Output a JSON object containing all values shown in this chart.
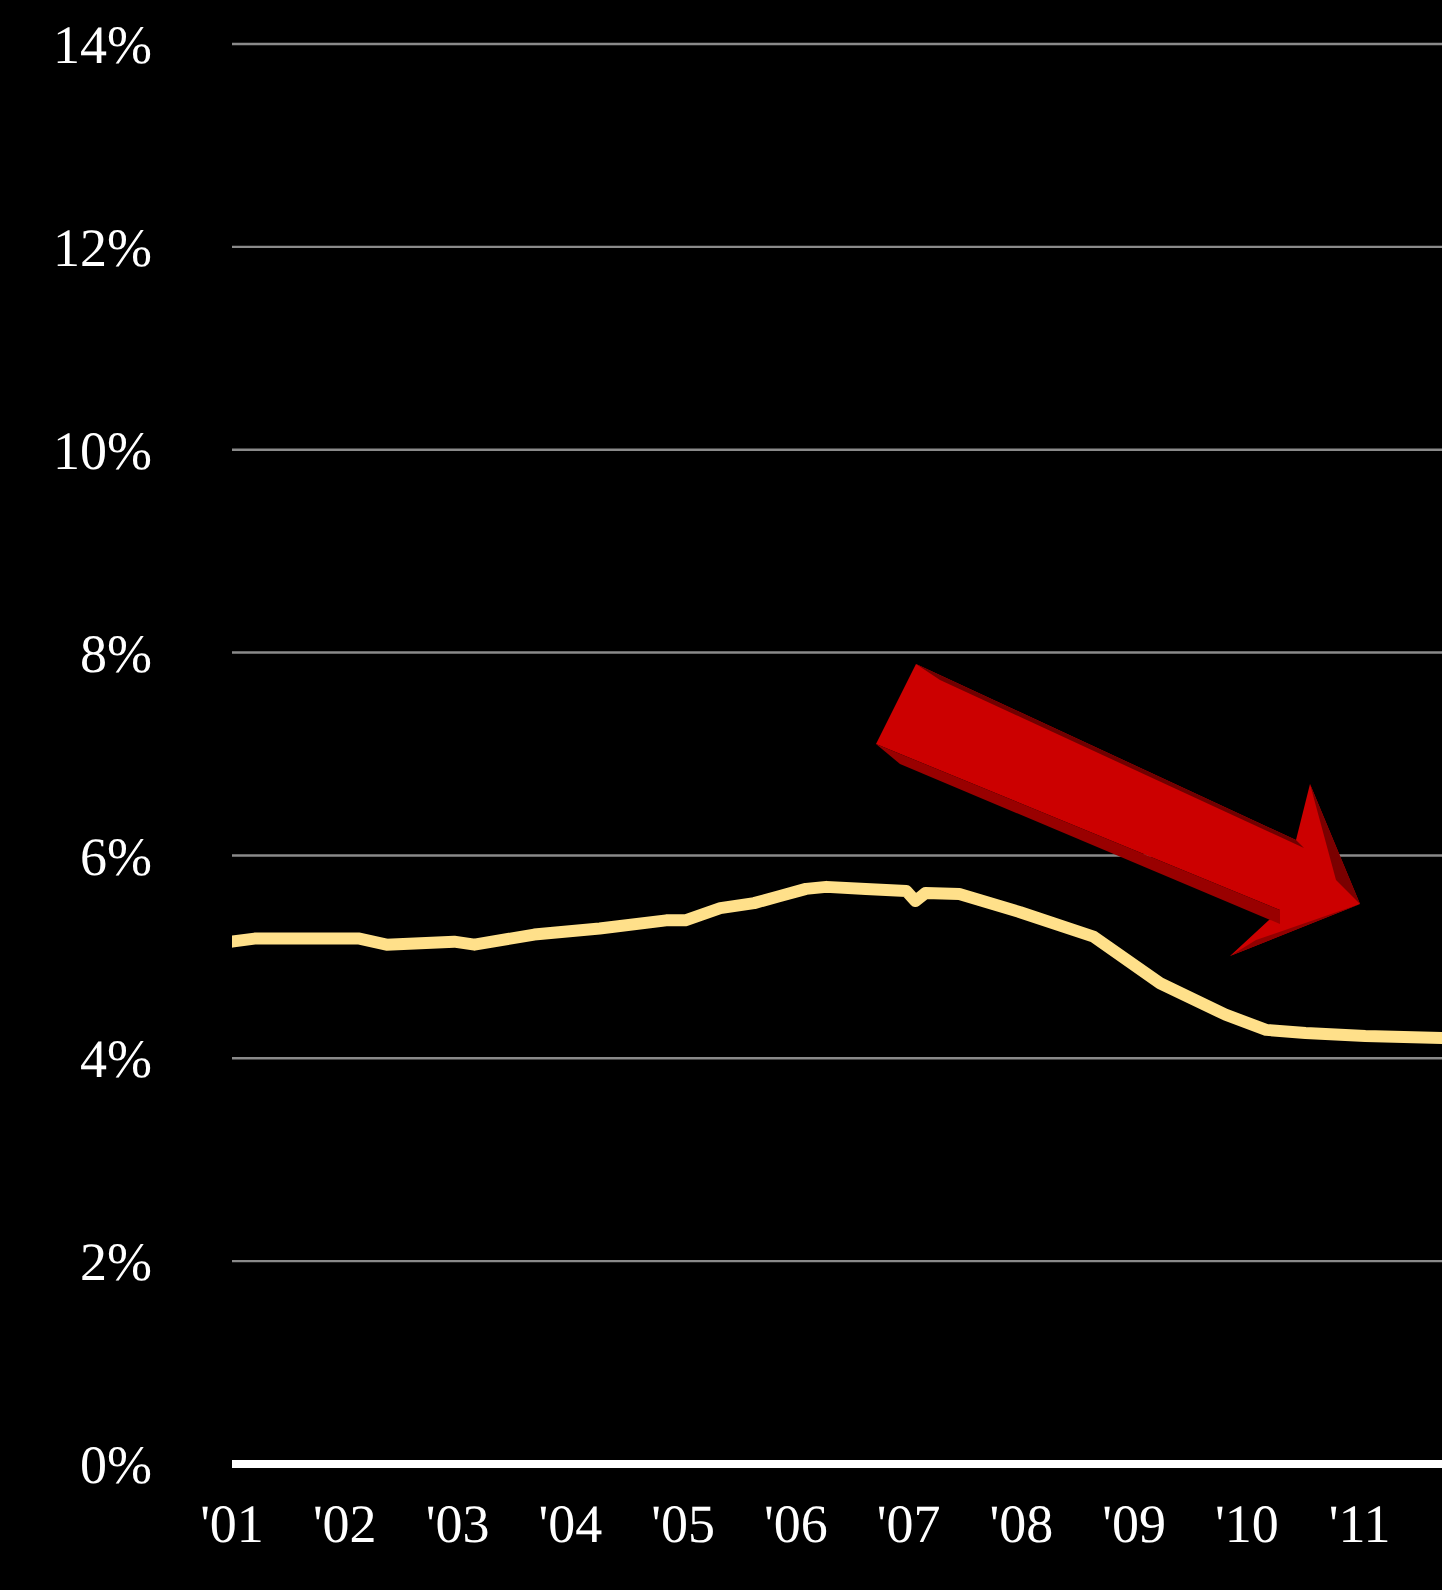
{
  "chart_data": {
    "type": "line",
    "x": [
      2001,
      2001.2,
      2002.13,
      2002.37,
      2002.97,
      2003.15,
      2003.68,
      2004.26,
      2004.85,
      2005.02,
      2005.33,
      2005.63,
      2005.86,
      2006.09,
      2006.27,
      2006.62,
      2006.98,
      2007.06,
      2007.15,
      2007.45,
      2007.99,
      2008.64,
      2009.23,
      2009.81,
      2010.17,
      2010.52,
      2011.05,
      2011.73
    ],
    "series": [
      {
        "color": "#ffe08a",
        "values": [
          5.15,
          5.18,
          5.18,
          5.12,
          5.15,
          5.12,
          5.22,
          5.28,
          5.36,
          5.36,
          5.48,
          5.53,
          5.6,
          5.67,
          5.69,
          5.67,
          5.65,
          5.55,
          5.63,
          5.62,
          5.44,
          5.2,
          4.74,
          4.43,
          4.28,
          4.25,
          4.22,
          4.2
        ]
      }
    ],
    "xlim": [
      2001,
      2011.73
    ],
    "xticks": [
      {
        "value": 2001,
        "label": "'01"
      },
      {
        "value": 2002,
        "label": "'02"
      },
      {
        "value": 2003,
        "label": "'03"
      },
      {
        "value": 2004,
        "label": "'04"
      },
      {
        "value": 2005,
        "label": "'05"
      },
      {
        "value": 2006,
        "label": "'06"
      },
      {
        "value": 2007,
        "label": "'07"
      },
      {
        "value": 2008,
        "label": "'08"
      },
      {
        "value": 2009,
        "label": "'09"
      },
      {
        "value": 2010,
        "label": "'10"
      },
      {
        "value": 2011,
        "label": "'11"
      }
    ],
    "ylim": [
      0,
      14
    ],
    "yticks": [
      {
        "value": 0,
        "label": "0%"
      },
      {
        "value": 2,
        "label": "2%"
      },
      {
        "value": 4,
        "label": "4%"
      },
      {
        "value": 6,
        "label": "6%"
      },
      {
        "value": 8,
        "label": "8%"
      },
      {
        "value": 10,
        "label": "10%"
      },
      {
        "value": 12,
        "label": "12%"
      },
      {
        "value": 14,
        "label": "14%"
      }
    ],
    "grid": "y",
    "marker": "none",
    "line_style": "solid"
  }
}
